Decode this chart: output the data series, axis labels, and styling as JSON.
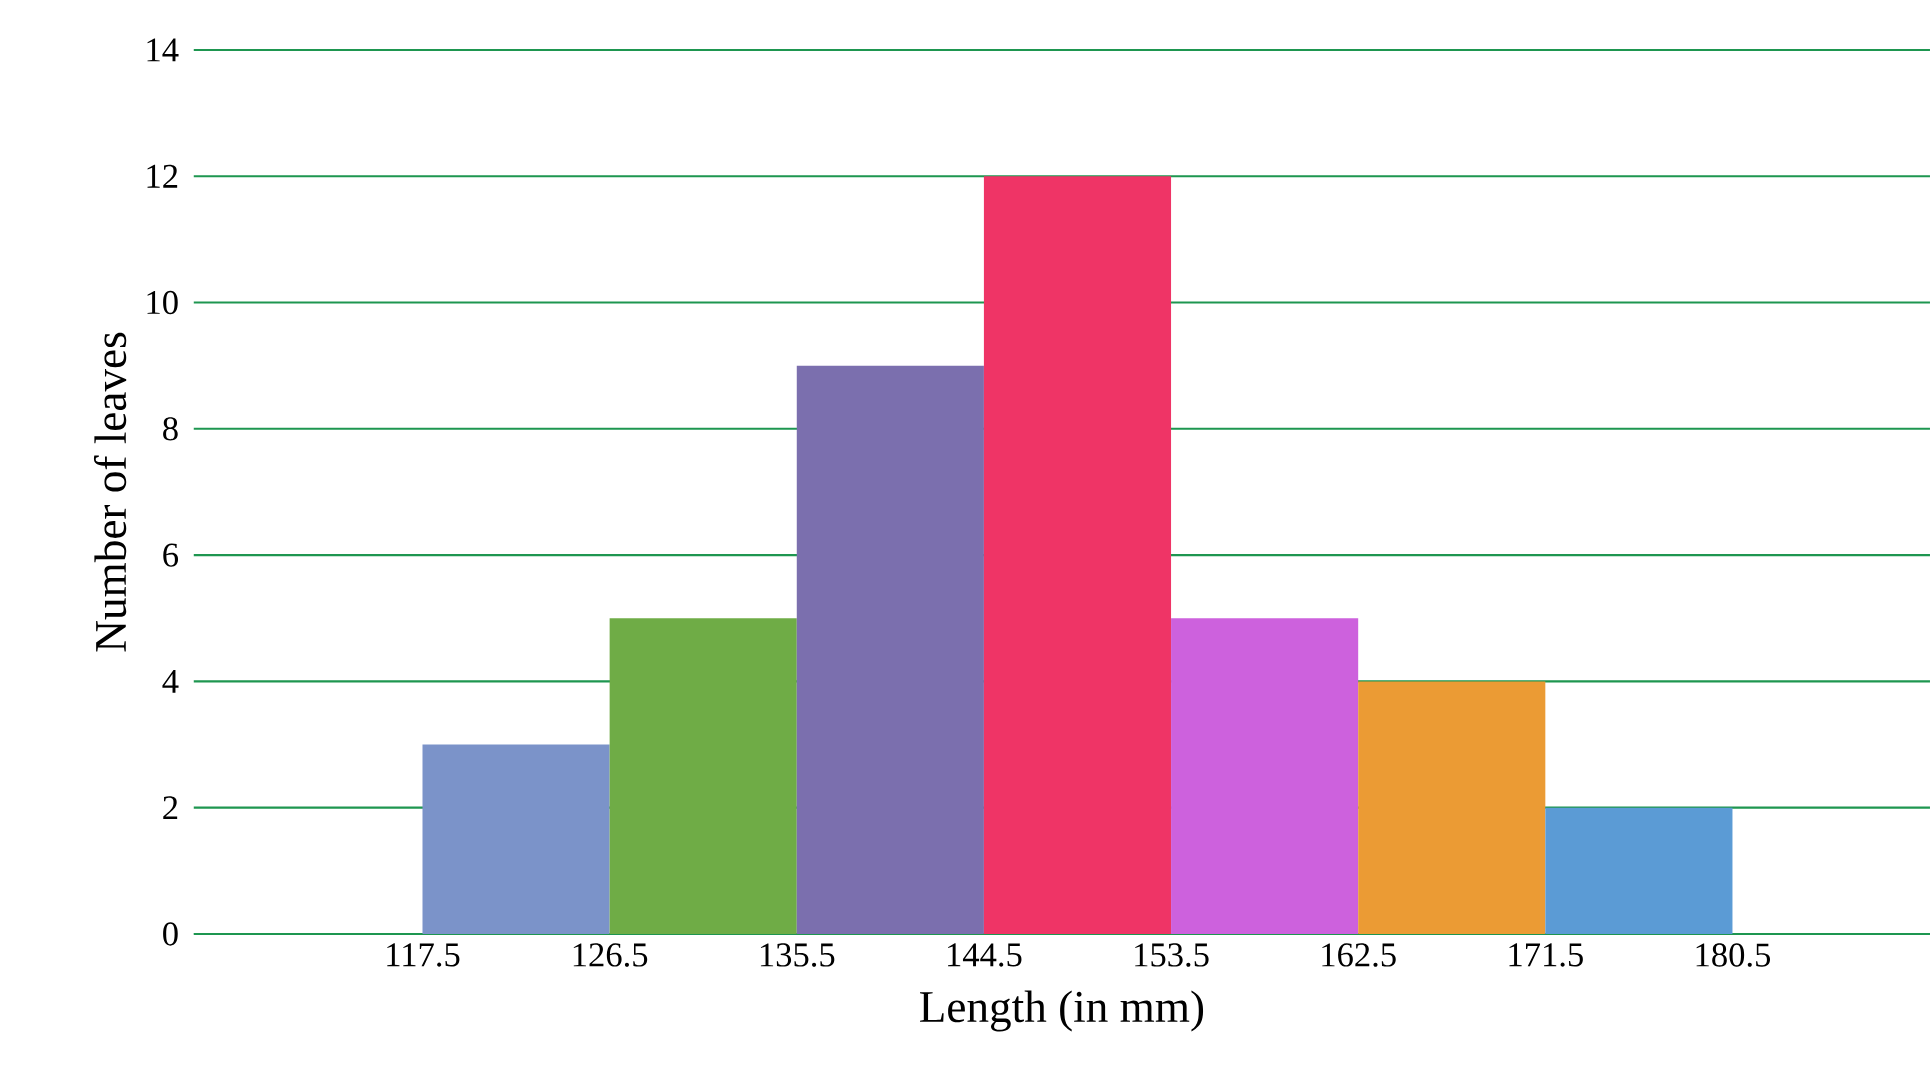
{
  "chart_data": {
    "type": "histogram",
    "xlabel": "Length (in mm)",
    "ylabel": "Number of leaves",
    "bins": [
      117.5,
      126.5,
      135.5,
      144.5,
      153.5,
      162.5,
      171.5,
      180.5
    ],
    "values": [
      3,
      5,
      9,
      12,
      5,
      4,
      2
    ],
    "colors": [
      "#7b93c9",
      "#6fac46",
      "#7b6fae",
      "#ef3466",
      "#cd61dd",
      "#eb9b34",
      "#5b9bd5"
    ],
    "xlim": [
      106.5,
      190
    ],
    "xticks": [
      117.5,
      126.5,
      135.5,
      144.5,
      153.5,
      162.5,
      171.5,
      180.5
    ],
    "ylim": [
      0,
      14
    ],
    "yticks": [
      0,
      2,
      4,
      6,
      8,
      10,
      12,
      14
    ],
    "grid": "y"
  }
}
